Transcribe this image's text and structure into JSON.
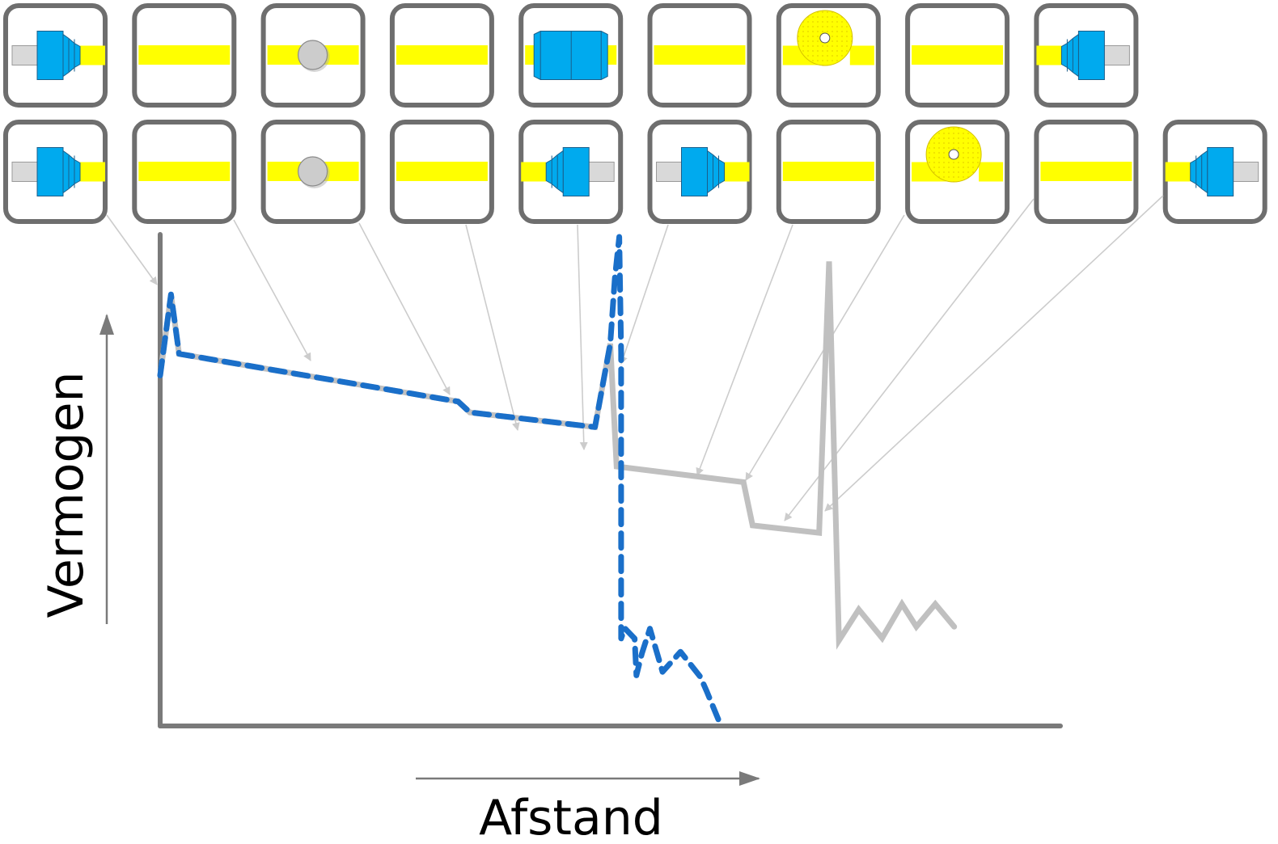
{
  "axes": {
    "x_label": "Afstand",
    "y_label": "Vermogen",
    "axis_color": "#7a7a7a",
    "arrow_color": "#7a7a7a"
  },
  "colors": {
    "fiber": "#ffff00",
    "connector": "#00aaee",
    "ferrule": "#d9d9d9",
    "splice": "#cccccc",
    "tile_border": "#6e6e6e",
    "trace_total": "#c0c0c0",
    "trace_dashed": "#1a6fc9",
    "leader": "#cccccc"
  },
  "rows": [
    {
      "name": "row-top",
      "tiles": [
        "connector-left",
        "fiber",
        "splice",
        "fiber",
        "coupler",
        "fiber",
        "bend",
        "fiber",
        "connector-right"
      ]
    },
    {
      "name": "row-bottom",
      "tiles": [
        "connector-left",
        "fiber",
        "splice",
        "fiber",
        "connector-right",
        "connector-left",
        "fiber",
        "bend",
        "fiber",
        "connector-right"
      ]
    }
  ],
  "chart_data": {
    "type": "line",
    "title": "",
    "xlabel": "Afstand",
    "ylabel": "Vermogen",
    "series": [
      {
        "style": "solid-grey",
        "points": [
          [
            0,
            0.713
          ],
          [
            0.012,
            0.878
          ],
          [
            0.021,
            0.757
          ],
          [
            0.331,
            0.66
          ],
          [
            0.344,
            0.638
          ],
          [
            0.483,
            0.608
          ],
          [
            0.5,
            0.778
          ],
          [
            0.507,
            0.528
          ],
          [
            0.648,
            0.496
          ],
          [
            0.658,
            0.408
          ],
          [
            0.732,
            0.393
          ],
          [
            0.743,
            0.945
          ],
          [
            0.754,
            0.174
          ],
          [
            0.776,
            0.237
          ],
          [
            0.802,
            0.179
          ],
          [
            0.824,
            0.248
          ],
          [
            0.84,
            0.202
          ],
          [
            0.861,
            0.248
          ],
          [
            0.882,
            0.202
          ]
        ]
      },
      {
        "style": "dashed-blue",
        "points": [
          [
            0,
            0.713
          ],
          [
            0.012,
            0.878
          ],
          [
            0.021,
            0.757
          ],
          [
            0.331,
            0.66
          ],
          [
            0.344,
            0.638
          ],
          [
            0.483,
            0.608
          ],
          [
            0.5,
            0.778
          ],
          [
            0.505,
            0.91
          ],
          [
            0.51,
            0.995
          ],
          [
            0.512,
            0.76
          ],
          [
            0.512,
            0.528
          ],
          [
            0.512,
            0.178
          ],
          [
            0.516,
            0.199
          ],
          [
            0.527,
            0.178
          ],
          [
            0.529,
            0.103
          ],
          [
            0.535,
            0.147
          ],
          [
            0.544,
            0.198
          ],
          [
            0.558,
            0.11
          ],
          [
            0.578,
            0.151
          ],
          [
            0.6,
            0.1
          ],
          [
            0.607,
            0.071
          ],
          [
            0.623,
            0.0
          ]
        ]
      }
    ]
  }
}
